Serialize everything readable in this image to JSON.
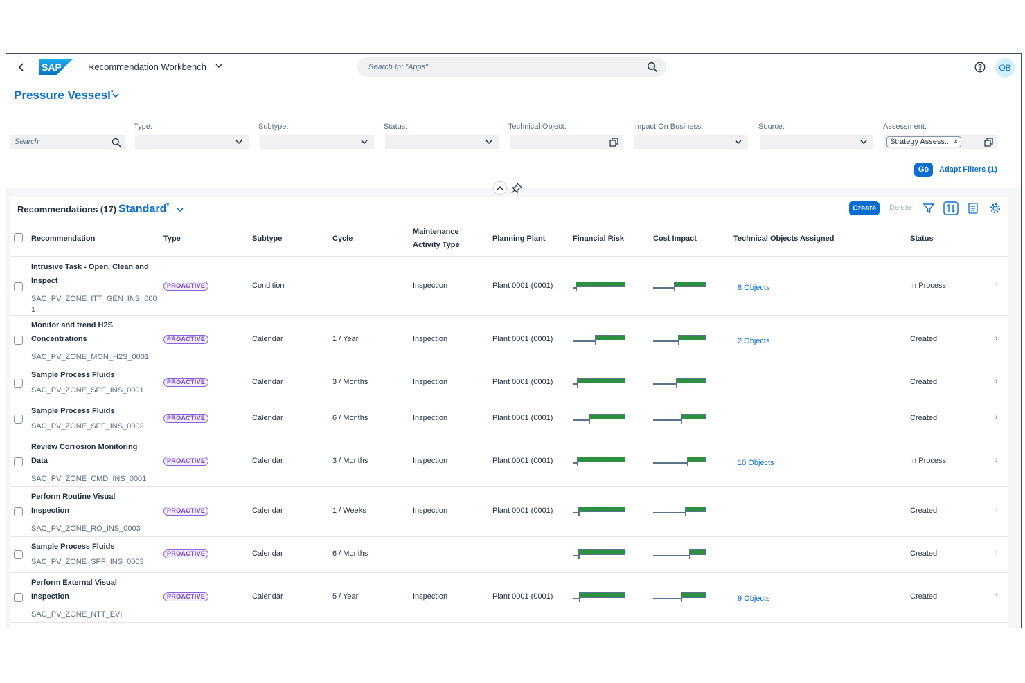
{
  "shell": {
    "back_icon": "chevron-left-icon",
    "logo_text": "SAP",
    "app_title": "Recommendation Workbench",
    "search_placeholder": "Search In: \"Apps\"",
    "avatar_initials": "OB"
  },
  "header": {
    "variant_title": "Pressure Vessesl",
    "variant_modified": "*",
    "filters": {
      "search_placeholder": "Search",
      "type_label": "Type:",
      "subtype_label": "Subtype:",
      "status_label": "Status:",
      "technical_object_label": "Technical Object:",
      "impact_label": "Impact On Business:",
      "source_label": "Source:",
      "assessment_label": "Assessment:",
      "assessment_token": "Strategy Assess...",
      "assessment_token_remove": "×"
    },
    "go_label": "Go",
    "adapt_filters_label": "Adapt Filters (1)"
  },
  "table": {
    "title": "Recommendations (17)",
    "variant": "Standard",
    "variant_modified": "*",
    "create_label": "Create",
    "delete_label": "Delete",
    "columns": {
      "recommendation": "Recommendation",
      "type": "Type",
      "subtype": "Subtype",
      "cycle": "Cycle",
      "maintenance_line1": "Maintenance",
      "maintenance_line2": "Activity Type",
      "planning_plant": "Planning Plant",
      "financial_risk": "Financial Risk",
      "cost_impact": "Cost Impact",
      "technical_objects": "Technical Objects Assigned",
      "status": "Status"
    },
    "rows": [
      {
        "name_l1": "Intrusive Task - Open, Clean and",
        "name_l2": "Inspect",
        "id_l1": "SAC_PV_ZONE_ITT_GEN_INS_000",
        "id_l2": "1",
        "type": "PROACTIVE",
        "subtype": "Condition",
        "cycle": "",
        "activity": "Inspection",
        "plant": "Plant 0001 (0001)",
        "objects": "8 Objects",
        "status": "In Process",
        "fin_actual": 0.92,
        "fin_target": 0.05,
        "cost_actual": 0.58,
        "cost_target": 0.4
      },
      {
        "name_l1": "Monitor and trend H2S",
        "name_l2": "Concentrations",
        "id_l1": "SAC_PV_ZONE_MON_H2S_0001",
        "id_l2": "",
        "type": "PROACTIVE",
        "subtype": "Calendar",
        "cycle": "1 / Year",
        "activity": "Inspection",
        "plant": "Plant 0001 (0001)",
        "objects": "2 Objects",
        "status": "Created",
        "fin_actual": 0.56,
        "fin_target": 0.42,
        "cost_actual": 0.5,
        "cost_target": 0.48
      },
      {
        "name_l1": "Sample Process Fluids",
        "name_l2": "",
        "id_l1": "SAC_PV_ZONE_SPF_INS_0001",
        "id_l2": "",
        "type": "PROACTIVE",
        "subtype": "Calendar",
        "cycle": "3 / Months",
        "activity": "Inspection",
        "plant": "Plant 0001 (0001)",
        "objects": "",
        "status": "Created",
        "fin_actual": 0.92,
        "fin_target": 0.08,
        "cost_actual": 0.55,
        "cost_target": 0.44
      },
      {
        "name_l1": "Sample Process Fluids",
        "name_l2": "",
        "id_l1": "SAC_PV_ZONE_SPF_INS_0002",
        "id_l2": "",
        "type": "PROACTIVE",
        "subtype": "Calendar",
        "cycle": "6 / Months",
        "activity": "Inspection",
        "plant": "Plant 0001 (0001)",
        "objects": "",
        "status": "Created",
        "fin_actual": 0.7,
        "fin_target": 0.3,
        "cost_actual": 0.48,
        "cost_target": 0.52
      },
      {
        "name_l1": "Review Corrosion Monitoring",
        "name_l2": "Data",
        "id_l1": "SAC_PV_ZONE_CMD_INS_0001",
        "id_l2": "",
        "type": "PROACTIVE",
        "subtype": "Calendar",
        "cycle": "3 / Months",
        "activity": "Inspection",
        "plant": "Plant 0001 (0001)",
        "objects": "10 Objects",
        "status": "In Process",
        "fin_actual": 0.92,
        "fin_target": 0.08,
        "cost_actual": 0.36,
        "cost_target": 0.64
      },
      {
        "name_l1": "Perform Routine Visual",
        "name_l2": "Inspection",
        "id_l1": "SAC_PV_ZONE_RO_INS_0003",
        "id_l2": "",
        "type": "PROACTIVE",
        "subtype": "Calendar",
        "cycle": "1 / Weeks",
        "activity": "Inspection",
        "plant": "Plant 0001 (0001)",
        "objects": "",
        "status": "Created",
        "fin_actual": 0.88,
        "fin_target": 0.1,
        "cost_actual": 0.4,
        "cost_target": 0.6
      },
      {
        "name_l1": "Sample Process Fluids",
        "name_l2": "",
        "id_l1": "SAC_PV_ZONE_SPF_INS_0003",
        "id_l2": "",
        "type": "PROACTIVE",
        "subtype": "Calendar",
        "cycle": "6 / Months",
        "activity": "",
        "plant": "",
        "objects": "",
        "status": "Created",
        "fin_actual": 0.88,
        "fin_target": 0.1,
        "cost_actual": 0.32,
        "cost_target": 0.68
      },
      {
        "name_l1": "Perform External Visual",
        "name_l2": "Inspection",
        "id_l1": "SAC_PV_ZONE_NTT_EVI",
        "id_l2": "",
        "type": "PROACTIVE",
        "subtype": "Calendar",
        "cycle": "5 / Year",
        "activity": "Inspection",
        "plant": "Plant 0001 (0001)",
        "objects": "9 Objects",
        "status": "Created",
        "fin_actual": 0.82,
        "fin_target": 0.12,
        "cost_actual": 0.48,
        "cost_target": 0.52
      }
    ]
  }
}
